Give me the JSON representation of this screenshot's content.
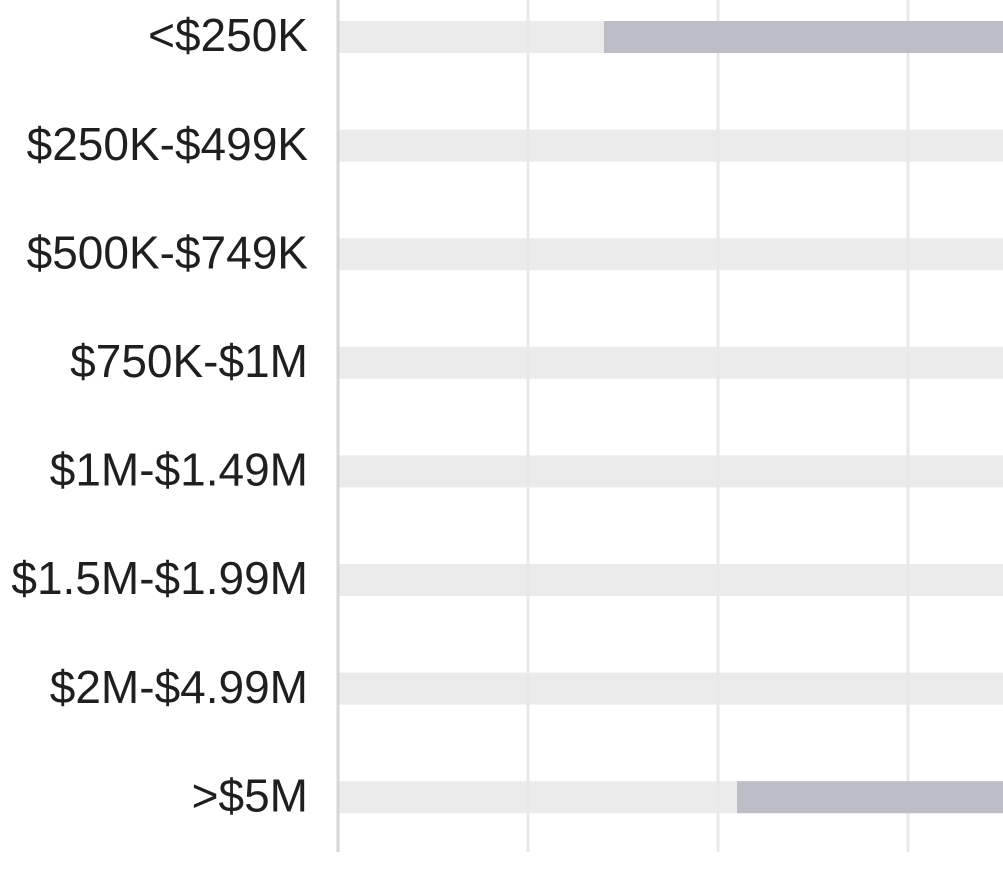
{
  "chart_data": {
    "type": "range-bar",
    "categories": [
      "<$250K",
      "$250K-$499K",
      "$500K-$749K",
      "$750K-$1M",
      "$1M-$1.49M",
      "$1.5M-$1.99M",
      "$2M-$4.99M",
      ">$5M"
    ],
    "values": [
      [
        1.4,
        3.5
      ],
      null,
      null,
      null,
      null,
      null,
      null,
      [
        2.1,
        3.5
      ]
    ],
    "color": "#bdbdc6",
    "track_color": "#ebebeb",
    "xlim": [
      0,
      3.5
    ],
    "xticks": [
      0,
      1,
      2,
      3
    ],
    "grid": true
  }
}
